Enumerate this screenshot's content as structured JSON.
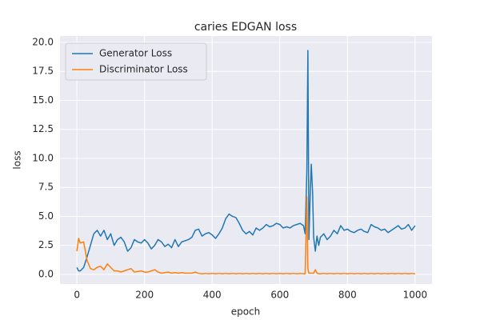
{
  "chart_data": {
    "type": "line",
    "title": "caries EDGAN loss",
    "x_label": "epoch",
    "y_label": "loss",
    "x": [
      0,
      5,
      10,
      20,
      30,
      40,
      50,
      60,
      70,
      80,
      90,
      100,
      110,
      120,
      130,
      140,
      150,
      160,
      170,
      180,
      190,
      200,
      210,
      220,
      230,
      240,
      250,
      260,
      270,
      280,
      290,
      300,
      310,
      320,
      330,
      340,
      350,
      360,
      370,
      380,
      390,
      400,
      410,
      420,
      430,
      440,
      450,
      460,
      470,
      480,
      490,
      500,
      510,
      520,
      530,
      540,
      550,
      560,
      570,
      580,
      590,
      600,
      610,
      620,
      630,
      640,
      650,
      660,
      670,
      675,
      680,
      683,
      686,
      690,
      693,
      697,
      700,
      705,
      710,
      715,
      720,
      730,
      740,
      750,
      760,
      770,
      780,
      790,
      800,
      810,
      820,
      830,
      840,
      850,
      860,
      870,
      880,
      890,
      900,
      910,
      920,
      930,
      940,
      950,
      960,
      970,
      980,
      990,
      1000
    ],
    "series": [
      {
        "name": "Generator Loss",
        "color": "#1f77b4",
        "values": [
          0.6,
          0.3,
          0.3,
          0.6,
          1.5,
          2.5,
          3.5,
          3.8,
          3.3,
          3.8,
          3.0,
          3.5,
          2.5,
          3.0,
          3.2,
          2.8,
          2.0,
          2.3,
          3.0,
          2.8,
          2.7,
          3.0,
          2.7,
          2.2,
          2.5,
          3.0,
          2.8,
          2.4,
          2.6,
          2.3,
          3.0,
          2.4,
          2.8,
          2.9,
          3.0,
          3.2,
          3.8,
          3.9,
          3.3,
          3.5,
          3.6,
          3.4,
          3.1,
          3.5,
          4.0,
          4.8,
          5.2,
          5.0,
          4.9,
          4.4,
          3.8,
          3.5,
          3.7,
          3.4,
          4.0,
          3.8,
          4.0,
          4.3,
          4.1,
          4.2,
          4.4,
          4.3,
          4.0,
          4.1,
          4.0,
          4.2,
          4.3,
          4.4,
          4.2,
          3.5,
          9.0,
          19.3,
          3.0,
          7.0,
          9.5,
          7.0,
          3.2,
          2.0,
          3.3,
          2.5,
          3.2,
          3.5,
          3.0,
          3.3,
          3.8,
          3.5,
          4.2,
          3.8,
          3.9,
          3.7,
          3.6,
          3.8,
          3.9,
          3.7,
          3.6,
          4.3,
          4.1,
          4.0,
          3.8,
          3.9,
          3.6,
          3.8,
          4.0,
          4.2,
          3.9,
          4.0,
          4.3,
          3.8,
          4.2
        ]
      },
      {
        "name": "Discriminator Loss",
        "color": "#ff7f0e",
        "values": [
          2.0,
          3.1,
          2.7,
          2.8,
          1.2,
          0.5,
          0.4,
          0.6,
          0.7,
          0.4,
          0.9,
          0.6,
          0.3,
          0.3,
          0.2,
          0.3,
          0.4,
          0.5,
          0.2,
          0.25,
          0.3,
          0.2,
          0.2,
          0.3,
          0.4,
          0.2,
          0.1,
          0.15,
          0.2,
          0.1,
          0.15,
          0.1,
          0.15,
          0.1,
          0.1,
          0.1,
          0.2,
          0.08,
          0.05,
          0.08,
          0.05,
          0.08,
          0.05,
          0.08,
          0.05,
          0.08,
          0.05,
          0.08,
          0.05,
          0.08,
          0.05,
          0.08,
          0.05,
          0.08,
          0.05,
          0.08,
          0.05,
          0.08,
          0.05,
          0.08,
          0.05,
          0.08,
          0.05,
          0.08,
          0.05,
          0.08,
          0.05,
          0.08,
          0.05,
          0.05,
          6.7,
          0.5,
          0.1,
          0.1,
          0.1,
          0.1,
          0.1,
          0.4,
          0.1,
          0.05,
          0.05,
          0.08,
          0.05,
          0.08,
          0.05,
          0.08,
          0.05,
          0.08,
          0.05,
          0.08,
          0.05,
          0.08,
          0.05,
          0.08,
          0.05,
          0.08,
          0.05,
          0.08,
          0.05,
          0.08,
          0.05,
          0.08,
          0.05,
          0.08,
          0.05,
          0.08,
          0.05,
          0.08,
          0.05
        ]
      }
    ],
    "xlim": [
      -50,
      1050
    ],
    "ylim": [
      -0.83,
      20.55
    ],
    "xticks": [
      0,
      200,
      400,
      600,
      800,
      1000
    ],
    "yticks": [
      {
        "value": 0,
        "label": "0.0"
      },
      {
        "value": 2.5,
        "label": "2.5"
      },
      {
        "value": 5,
        "label": "5.0"
      },
      {
        "value": 7.5,
        "label": "7.5"
      },
      {
        "value": 10,
        "label": "10.0"
      },
      {
        "value": 12.5,
        "label": "12.5"
      },
      {
        "value": 15,
        "label": "15.0"
      },
      {
        "value": 17.5,
        "label": "17.5"
      },
      {
        "value": 20,
        "label": "20.0"
      }
    ],
    "grid": true,
    "legend": "upper left"
  }
}
